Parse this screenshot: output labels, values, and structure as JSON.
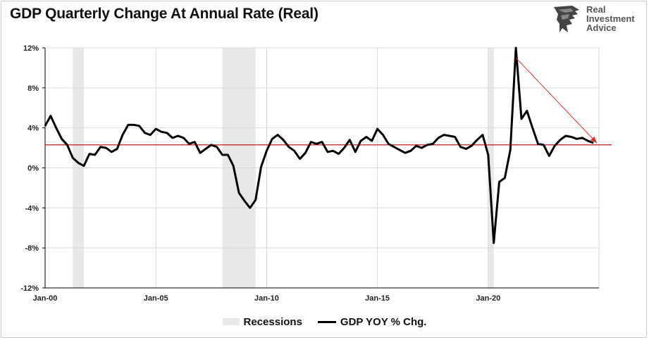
{
  "chart_data": {
    "type": "line",
    "title": "GDP Quarterly Change At Annual Rate (Real)",
    "xlabel": "",
    "ylabel": "",
    "ylim": [
      -12,
      12
    ],
    "y_ticks": [
      12,
      8,
      4,
      0,
      -4,
      -8,
      -12
    ],
    "y_tick_labels": [
      "12%",
      "8%",
      "4%",
      "0%",
      "-4%",
      "-8%",
      "-12%"
    ],
    "x_range": [
      2000.0,
      2025.0
    ],
    "x_ticks": [
      2000,
      2005,
      2010,
      2015,
      2020
    ],
    "x_tick_labels": [
      "Jan-00",
      "Jan-05",
      "Jan-10",
      "Jan-15",
      "Jan-20"
    ],
    "grid": true,
    "legend_position": "bottom-center",
    "recessions": [
      {
        "start": 2001.25,
        "end": 2001.75
      },
      {
        "start": 2008.0,
        "end": 2009.5
      },
      {
        "start": 2020.0,
        "end": 2020.25
      }
    ],
    "reference_line": {
      "value": 2.3,
      "color": "#c00000"
    },
    "trend_arrow": {
      "from": [
        2021.25,
        11.0
      ],
      "to": [
        2024.9,
        2.5
      ],
      "color": "#e03030"
    },
    "series": [
      {
        "name": "GDP YOY % Chg.",
        "color": "#000000",
        "x": [
          2000.0,
          2000.25,
          2000.5,
          2000.75,
          2001.0,
          2001.25,
          2001.5,
          2001.75,
          2002.0,
          2002.25,
          2002.5,
          2002.75,
          2003.0,
          2003.25,
          2003.5,
          2003.75,
          2004.0,
          2004.25,
          2004.5,
          2004.75,
          2005.0,
          2005.25,
          2005.5,
          2005.75,
          2006.0,
          2006.25,
          2006.5,
          2006.75,
          2007.0,
          2007.25,
          2007.5,
          2007.75,
          2008.0,
          2008.25,
          2008.5,
          2008.75,
          2009.0,
          2009.25,
          2009.5,
          2009.75,
          2010.0,
          2010.25,
          2010.5,
          2010.75,
          2011.0,
          2011.25,
          2011.5,
          2011.75,
          2012.0,
          2012.25,
          2012.5,
          2012.75,
          2013.0,
          2013.25,
          2013.5,
          2013.75,
          2014.0,
          2014.25,
          2014.5,
          2014.75,
          2015.0,
          2015.25,
          2015.5,
          2015.75,
          2016.0,
          2016.25,
          2016.5,
          2016.75,
          2017.0,
          2017.25,
          2017.5,
          2017.75,
          2018.0,
          2018.25,
          2018.5,
          2018.75,
          2019.0,
          2019.25,
          2019.5,
          2019.75,
          2020.0,
          2020.25,
          2020.5,
          2020.75,
          2021.0,
          2021.25,
          2021.5,
          2021.75,
          2022.0,
          2022.25,
          2022.5,
          2022.75,
          2023.0,
          2023.25,
          2023.5,
          2023.75,
          2024.0,
          2024.25,
          2024.5,
          2024.75
        ],
        "values": [
          4.2,
          5.2,
          4.0,
          2.9,
          2.3,
          1.0,
          0.5,
          0.2,
          1.4,
          1.3,
          2.1,
          2.0,
          1.6,
          1.9,
          3.3,
          4.3,
          4.3,
          4.2,
          3.5,
          3.3,
          3.9,
          3.6,
          3.5,
          3.0,
          3.2,
          3.0,
          2.4,
          2.6,
          1.5,
          1.9,
          2.3,
          2.1,
          1.3,
          1.3,
          0.2,
          -2.5,
          -3.3,
          -4.0,
          -3.2,
          0.1,
          1.7,
          2.9,
          3.3,
          2.8,
          2.1,
          1.7,
          0.9,
          1.5,
          2.6,
          2.4,
          2.6,
          1.6,
          1.7,
          1.4,
          2.0,
          2.8,
          1.6,
          2.7,
          3.1,
          2.7,
          3.9,
          3.3,
          2.4,
          2.1,
          1.8,
          1.5,
          1.7,
          2.2,
          2.0,
          2.3,
          2.4,
          3.0,
          3.3,
          3.2,
          3.1,
          2.1,
          1.9,
          2.2,
          2.8,
          3.3,
          1.3,
          -7.5,
          -1.4,
          -1.0,
          1.8,
          12.0,
          4.9,
          5.7,
          4.0,
          2.4,
          2.3,
          1.2,
          2.2,
          2.8,
          3.2,
          3.1,
          2.9,
          3.0,
          2.7,
          2.5
        ]
      }
    ]
  },
  "branding": {
    "line1": "Real",
    "line2": "Investment",
    "line3": "Advice"
  },
  "legend": {
    "recessions_label": "Recessions",
    "series_label": "GDP YOY % Chg."
  },
  "colors": {
    "recession_fill": "#e8e8e8",
    "gridline": "#d9d9d9",
    "axis": "#000000"
  }
}
